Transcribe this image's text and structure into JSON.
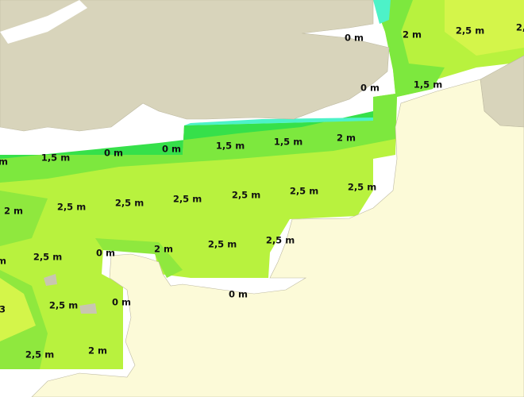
{
  "labels": [
    "0 m",
    "2 m",
    "2,5 m",
    "2,",
    "0 m",
    "1,5 m",
    "1,5 m",
    "1,5 m",
    "2 m",
    "0 m",
    "0 m",
    "1,5 m",
    "m",
    "2,5 m",
    "2,5 m",
    "2,5 m",
    "2,5 m",
    "2,5 m",
    "2,5 m",
    "2 m",
    "2,5 m",
    "2,5 m",
    "2 m",
    "0 m",
    "2,5 m",
    "m",
    "0 m",
    "2,5 m",
    "3",
    "0 m",
    "2 m",
    "2,5 m"
  ]
}
